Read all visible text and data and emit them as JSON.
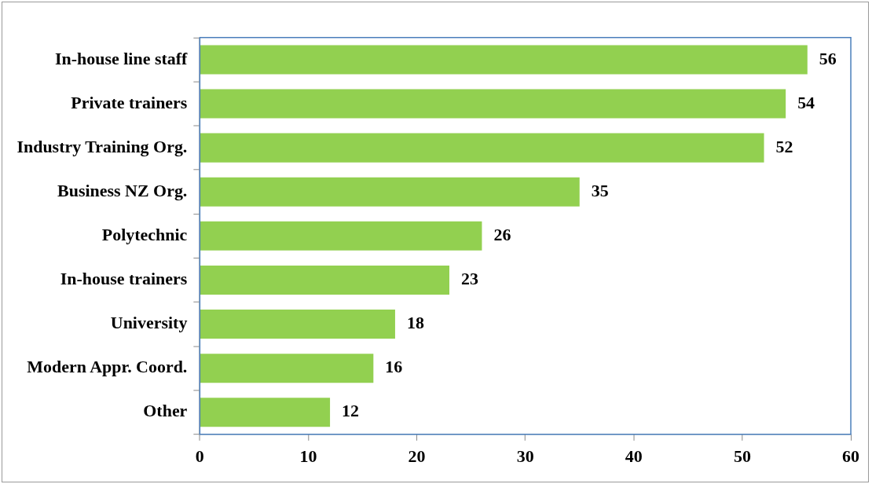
{
  "chart_data": {
    "type": "bar",
    "orientation": "horizontal",
    "categories": [
      "In-house line staff",
      "Private trainers",
      "Industry Training Org.",
      "Business NZ Org.",
      "Polytechnic",
      "In-house trainers",
      "University",
      "Modern Appr. Coord.",
      "Other"
    ],
    "values": [
      56,
      54,
      52,
      35,
      26,
      23,
      18,
      16,
      12
    ],
    "color": "#92d050",
    "xlim": [
      0,
      60
    ],
    "xticks": [
      0,
      10,
      20,
      30,
      40,
      50,
      60
    ],
    "grid": false,
    "legend": false,
    "data_labels": true
  }
}
